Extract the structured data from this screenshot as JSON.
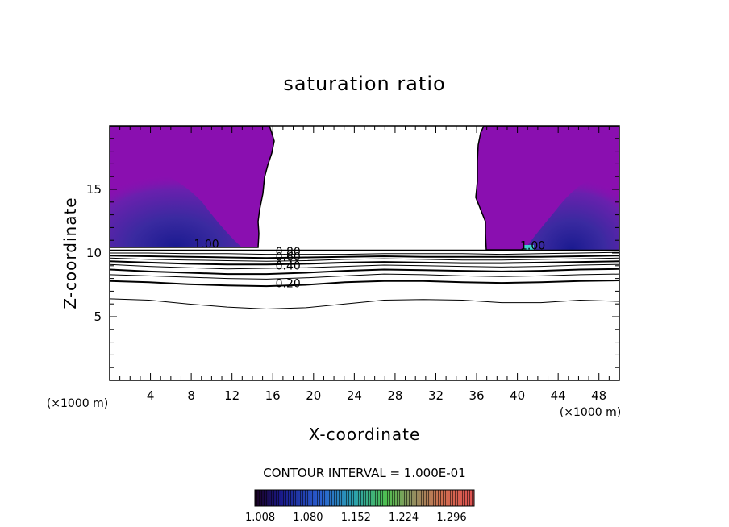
{
  "chart_data": {
    "type": "contour",
    "title": "saturation ratio",
    "xlabel": "X-coordinate",
    "ylabel": "Z-coordinate",
    "x_unit": "(×1000 m)",
    "y_unit": "(×1000 m)",
    "xlim": [
      0,
      50
    ],
    "ylim": [
      0,
      20
    ],
    "x_ticks": [
      "4",
      "8",
      "12",
      "16",
      "20",
      "24",
      "28",
      "32",
      "36",
      "40",
      "44",
      "48"
    ],
    "y_ticks": [
      "5",
      "10",
      "15"
    ],
    "contour_interval_label": "CONTOUR INTERVAL = 1.000E-01",
    "contour_labels": [
      {
        "text": "1.00",
        "x": 9.5,
        "z": 10.4
      },
      {
        "text": "0.80",
        "x": 17.5,
        "z": 9.8
      },
      {
        "text": "0.60",
        "x": 17.5,
        "z": 9.4
      },
      {
        "text": "0.40",
        "x": 17.5,
        "z": 8.7
      },
      {
        "text": "0.20",
        "x": 17.5,
        "z": 7.3
      },
      {
        "text": "1.00",
        "x": 41.5,
        "z": 10.3
      }
    ],
    "contour_lines": [
      {
        "level": 1.0,
        "z": [
          10.2,
          10.2,
          10.2,
          10.2,
          10.2,
          10.2,
          10.2,
          10.2,
          10.2,
          10.2,
          10.2,
          10.2,
          10.2,
          10.2
        ]
      },
      {
        "level": 0.9,
        "z": [
          10.0,
          10.0,
          9.95,
          9.95,
          9.9,
          9.9,
          9.9,
          9.95,
          9.95,
          9.95,
          9.9,
          9.95,
          10.0,
          10.05
        ]
      },
      {
        "level": 0.8,
        "z": [
          9.8,
          9.75,
          9.7,
          9.65,
          9.6,
          9.65,
          9.7,
          9.75,
          9.7,
          9.7,
          9.7,
          9.7,
          9.75,
          9.8
        ]
      },
      {
        "level": 0.7,
        "z": [
          9.6,
          9.5,
          9.45,
          9.4,
          9.35,
          9.4,
          9.5,
          9.55,
          9.5,
          9.45,
          9.45,
          9.5,
          9.55,
          9.6
        ]
      },
      {
        "level": 0.6,
        "z": [
          9.35,
          9.25,
          9.15,
          9.1,
          9.1,
          9.15,
          9.25,
          9.3,
          9.25,
          9.2,
          9.2,
          9.25,
          9.3,
          9.35
        ]
      },
      {
        "level": 0.5,
        "z": [
          9.1,
          8.95,
          8.85,
          8.75,
          8.8,
          8.85,
          8.95,
          9.05,
          9.0,
          8.95,
          8.9,
          8.95,
          9.05,
          9.1
        ]
      },
      {
        "level": 0.4,
        "z": [
          8.7,
          8.55,
          8.45,
          8.35,
          8.35,
          8.45,
          8.6,
          8.7,
          8.65,
          8.6,
          8.55,
          8.6,
          8.7,
          8.75
        ]
      },
      {
        "level": 0.3,
        "z": [
          8.3,
          8.2,
          8.1,
          8.0,
          7.95,
          8.05,
          8.2,
          8.35,
          8.3,
          8.2,
          8.15,
          8.2,
          8.3,
          8.35
        ]
      },
      {
        "level": 0.2,
        "z": [
          7.8,
          7.7,
          7.55,
          7.45,
          7.4,
          7.5,
          7.7,
          7.8,
          7.8,
          7.7,
          7.65,
          7.7,
          7.8,
          7.85
        ]
      },
      {
        "level": 0.1,
        "z": [
          6.4,
          6.3,
          6.0,
          5.75,
          5.6,
          5.7,
          6.0,
          6.3,
          6.35,
          6.3,
          6.1,
          6.1,
          6.3,
          6.2
        ]
      }
    ],
    "colorbar": {
      "ticks": [
        "1.008",
        "1.080",
        "1.152",
        "1.224",
        "1.296"
      ],
      "range": [
        1.0,
        1.33
      ]
    },
    "fill_color_high": "#8a0fb0",
    "fill_color_low": "#1a1a7a",
    "grid": false
  }
}
